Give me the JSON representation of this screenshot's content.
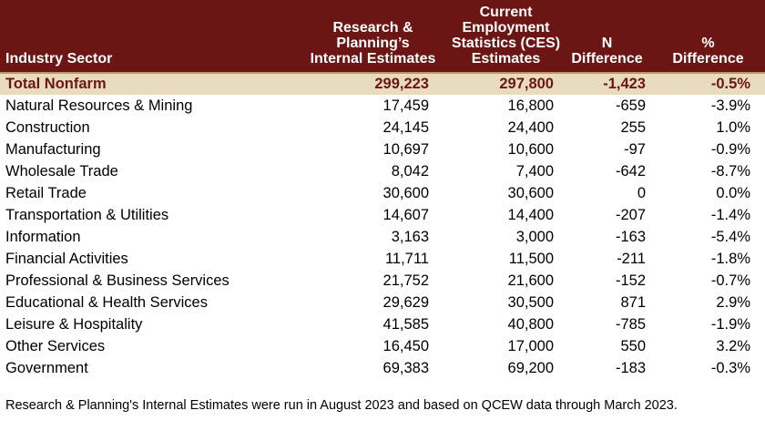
{
  "header": {
    "sector": "Industry Sector",
    "internal_1": "Research &",
    "internal_2": "Planning’s",
    "internal_3": "Internal Estimates",
    "ces_1": "Current",
    "ces_2": "Employment",
    "ces_3": "Statistics (CES)",
    "ces_4": "Estimates",
    "n_1": "N",
    "n_2": "Difference",
    "pct_1": "%",
    "pct_2": "Difference"
  },
  "rows": [
    {
      "sector": "Total Nonfarm",
      "internal": "299,223",
      "ces": "297,800",
      "n_diff": "-1,423",
      "pct_diff": "-0.5%"
    },
    {
      "sector": "Natural Resources & Mining",
      "internal": "17,459",
      "ces": "16,800",
      "n_diff": "-659",
      "pct_diff": "-3.9%"
    },
    {
      "sector": "Construction",
      "internal": "24,145",
      "ces": "24,400",
      "n_diff": "255",
      "pct_diff": "1.0%"
    },
    {
      "sector": "Manufacturing",
      "internal": "10,697",
      "ces": "10,600",
      "n_diff": "-97",
      "pct_diff": "-0.9%"
    },
    {
      "sector": "Wholesale Trade",
      "internal": "8,042",
      "ces": "7,400",
      "n_diff": "-642",
      "pct_diff": "-8.7%"
    },
    {
      "sector": "Retail Trade",
      "internal": "30,600",
      "ces": "30,600",
      "n_diff": "0",
      "pct_diff": "0.0%"
    },
    {
      "sector": "Transportation & Utilities",
      "internal": "14,607",
      "ces": "14,400",
      "n_diff": "-207",
      "pct_diff": "-1.4%"
    },
    {
      "sector": "Information",
      "internal": "3,163",
      "ces": "3,000",
      "n_diff": "-163",
      "pct_diff": "-5.4%"
    },
    {
      "sector": "Financial Activities",
      "internal": "11,711",
      "ces": "11,500",
      "n_diff": "-211",
      "pct_diff": "-1.8%"
    },
    {
      "sector": "Professional & Business Services",
      "internal": "21,752",
      "ces": "21,600",
      "n_diff": "-152",
      "pct_diff": "-0.7%"
    },
    {
      "sector": "Educational & Health Services",
      "internal": "29,629",
      "ces": "30,500",
      "n_diff": "871",
      "pct_diff": "2.9%"
    },
    {
      "sector": "Leisure & Hospitality",
      "internal": "41,585",
      "ces": "40,800",
      "n_diff": "-785",
      "pct_diff": "-1.9%"
    },
    {
      "sector": "Other Services",
      "internal": "16,450",
      "ces": "17,000",
      "n_diff": "550",
      "pct_diff": "3.2%"
    },
    {
      "sector": "Government",
      "internal": "69,383",
      "ces": "69,200",
      "n_diff": "-183",
      "pct_diff": "-0.3%"
    }
  ],
  "footnote": "Research & Planning's Internal Estimates were run in August 2023 and based on QCEW data through March 2023.",
  "colors": {
    "header_bg": "#6b1614",
    "total_row_bg": "#e9dcbe",
    "total_row_text": "#6b1614"
  }
}
